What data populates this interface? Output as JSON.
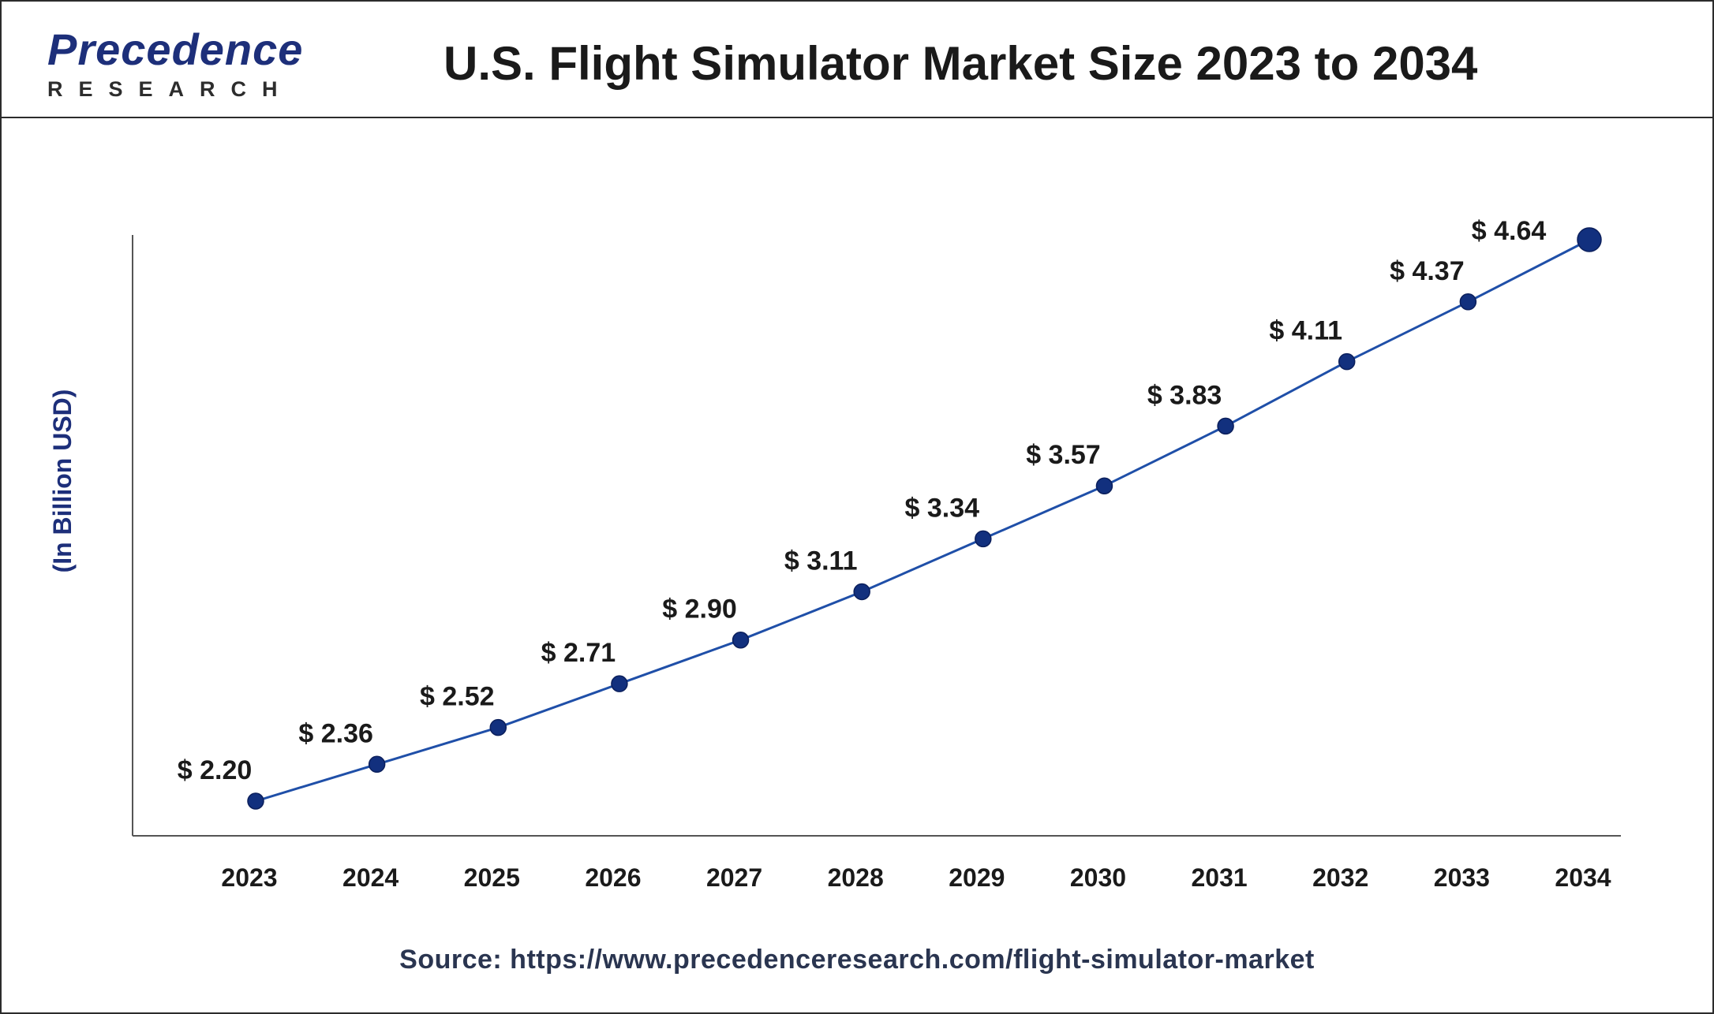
{
  "header": {
    "logo_word": "Precedence",
    "logo_sub": "RESEARCH",
    "title": "U.S. Flight Simulator Market Size 2023 to 2034"
  },
  "colors": {
    "line": "#1f4fa8",
    "marker": "#12307e",
    "brand": "#1d2f7a"
  },
  "chart_data": {
    "type": "line",
    "title": "U.S. Flight Simulator Market Size 2023 to 2034",
    "xlabel": "",
    "ylabel": "(In Billion USD)",
    "categories": [
      "2023",
      "2024",
      "2025",
      "2026",
      "2027",
      "2028",
      "2029",
      "2030",
      "2031",
      "2032",
      "2033",
      "2034"
    ],
    "series": [
      {
        "values": [
          2.2,
          2.36,
          2.52,
          2.71,
          2.9,
          3.11,
          3.34,
          3.57,
          3.83,
          4.11,
          4.37,
          4.64
        ],
        "labels": [
          "$ 2.20",
          "$ 2.36",
          "$ 2.52",
          "$ 2.71",
          "$ 2.90",
          "$ 3.11",
          "$ 3.34",
          "$ 3.57",
          "$ 3.83",
          "$ 4.11",
          "$ 4.37",
          "$ 4.64"
        ]
      }
    ],
    "grid": false,
    "legend": "none"
  },
  "source": "Source: https://www.precedenceresearch.com/flight-simulator-market"
}
